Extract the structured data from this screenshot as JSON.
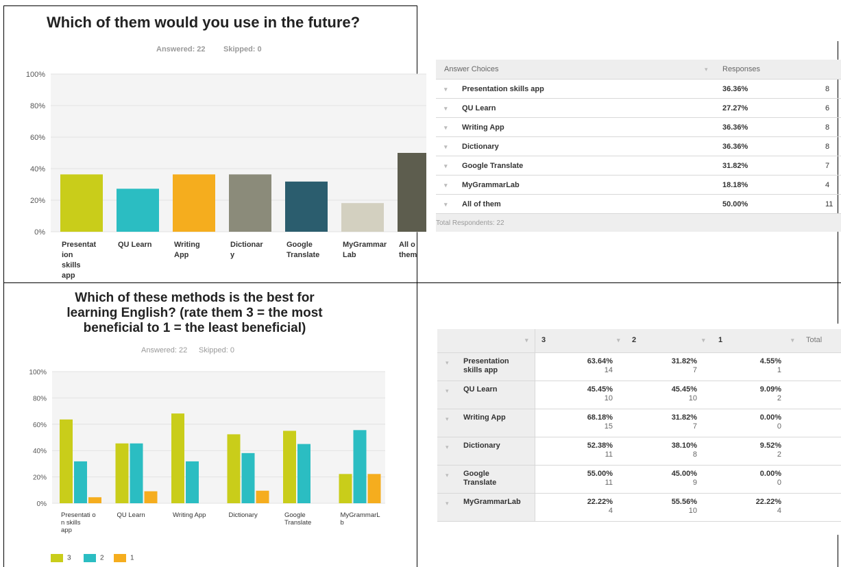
{
  "top_chart": {
    "title": "Which of them would you use in the future?",
    "answered_text": "Answered: 22",
    "skipped_text": "Skipped: 0"
  },
  "bottom_chart": {
    "title_lines": [
      "Which of these methods is the best for",
      "learning English? (rate them 3 = the most",
      "beneficial to 1 = the least beneficial)"
    ],
    "answered_text": "Answered: 22",
    "skipped_text": "Skipped: 0",
    "legend": [
      {
        "label": "3",
        "color": "#c9cd1a"
      },
      {
        "label": "2",
        "color": "#2bbdc2"
      },
      {
        "label": "1",
        "color": "#f5ad1e"
      }
    ]
  },
  "table1": {
    "header_choice": "Answer Choices",
    "header_responses": "Responses",
    "rows": [
      {
        "label": "Presentation skills app",
        "pct": "36.36%",
        "count": "8"
      },
      {
        "label": "QU Learn",
        "pct": "27.27%",
        "count": "6"
      },
      {
        "label": "Writing App",
        "pct": "36.36%",
        "count": "8"
      },
      {
        "label": "Dictionary",
        "pct": "36.36%",
        "count": "8"
      },
      {
        "label": "Google Translate",
        "pct": "31.82%",
        "count": "7"
      },
      {
        "label": "MyGrammarLab",
        "pct": "18.18%",
        "count": "4"
      },
      {
        "label": "All of them",
        "pct": "50.00%",
        "count": "11"
      }
    ],
    "footer": "Total Respondents: 22"
  },
  "table2": {
    "headers": [
      "3",
      "2",
      "1",
      "Total"
    ],
    "rows": [
      {
        "label": [
          "Presentation",
          "skills app"
        ],
        "cells": [
          [
            "63.64%",
            "14"
          ],
          [
            "31.82%",
            "7"
          ],
          [
            "4.55%",
            "1"
          ]
        ]
      },
      {
        "label": [
          "QU Learn"
        ],
        "cells": [
          [
            "45.45%",
            "10"
          ],
          [
            "45.45%",
            "10"
          ],
          [
            "9.09%",
            "2"
          ]
        ]
      },
      {
        "label": [
          "Writing App"
        ],
        "cells": [
          [
            "68.18%",
            "15"
          ],
          [
            "31.82%",
            "7"
          ],
          [
            "0.00%",
            "0"
          ]
        ]
      },
      {
        "label": [
          "Dictionary"
        ],
        "cells": [
          [
            "52.38%",
            "11"
          ],
          [
            "38.10%",
            "8"
          ],
          [
            "9.52%",
            "2"
          ]
        ]
      },
      {
        "label": [
          "Google",
          "Translate"
        ],
        "cells": [
          [
            "55.00%",
            "11"
          ],
          [
            "45.00%",
            "9"
          ],
          [
            "0.00%",
            "0"
          ]
        ]
      },
      {
        "label": [
          "MyGrammarLab"
        ],
        "cells": [
          [
            "22.22%",
            "4"
          ],
          [
            "55.56%",
            "10"
          ],
          [
            "22.22%",
            "4"
          ]
        ]
      }
    ]
  },
  "chart_data": [
    {
      "type": "bar",
      "title": "Which of them would you use in the future?",
      "categories": [
        [
          "Presentat",
          "ion",
          "skills",
          "app"
        ],
        [
          "QU Learn"
        ],
        [
          "Writing",
          "App"
        ],
        [
          "Dictionar",
          "y"
        ],
        [
          "Google",
          "Translate"
        ],
        [
          "MyGrammar",
          "Lab"
        ],
        [
          "All o",
          "them"
        ]
      ],
      "values": [
        36.36,
        27.27,
        36.36,
        36.36,
        31.82,
        18.18,
        50.0
      ],
      "colors": [
        "#c9cd1a",
        "#2bbdc2",
        "#f5ad1e",
        "#8b8b7a",
        "#2b5d6e",
        "#d3d0c0",
        "#5d5d4e"
      ],
      "yticks": [
        "100%",
        "80%",
        "60%",
        "40%",
        "20%",
        "0%"
      ],
      "ylim": [
        0,
        100
      ],
      "grid": true
    },
    {
      "type": "bar",
      "title": "Which of these methods is the best for learning English? (rate them 3 = the most beneficial to 1 = the least beneficial)",
      "categories": [
        [
          "Presentati o",
          "n skills",
          "app"
        ],
        [
          "QU Learn"
        ],
        [
          "Writing App"
        ],
        [
          "Dictionary"
        ],
        [
          "Google",
          "Translate"
        ],
        [
          "MyGrammarL",
          "b"
        ]
      ],
      "series": [
        {
          "name": "3",
          "values": [
            63.64,
            45.45,
            68.18,
            52.38,
            55.0,
            22.22
          ],
          "color": "#c9cd1a"
        },
        {
          "name": "2",
          "values": [
            31.82,
            45.45,
            31.82,
            38.1,
            45.0,
            55.56
          ],
          "color": "#2bbdc2"
        },
        {
          "name": "1",
          "values": [
            4.55,
            9.09,
            0.0,
            9.52,
            0.0,
            22.22
          ],
          "color": "#f5ad1e"
        }
      ],
      "yticks": [
        "100%",
        "80%",
        "60%",
        "40%",
        "20%",
        "0%"
      ],
      "ylim": [
        0,
        100
      ],
      "legend": "bottom-left",
      "grid": true
    }
  ]
}
